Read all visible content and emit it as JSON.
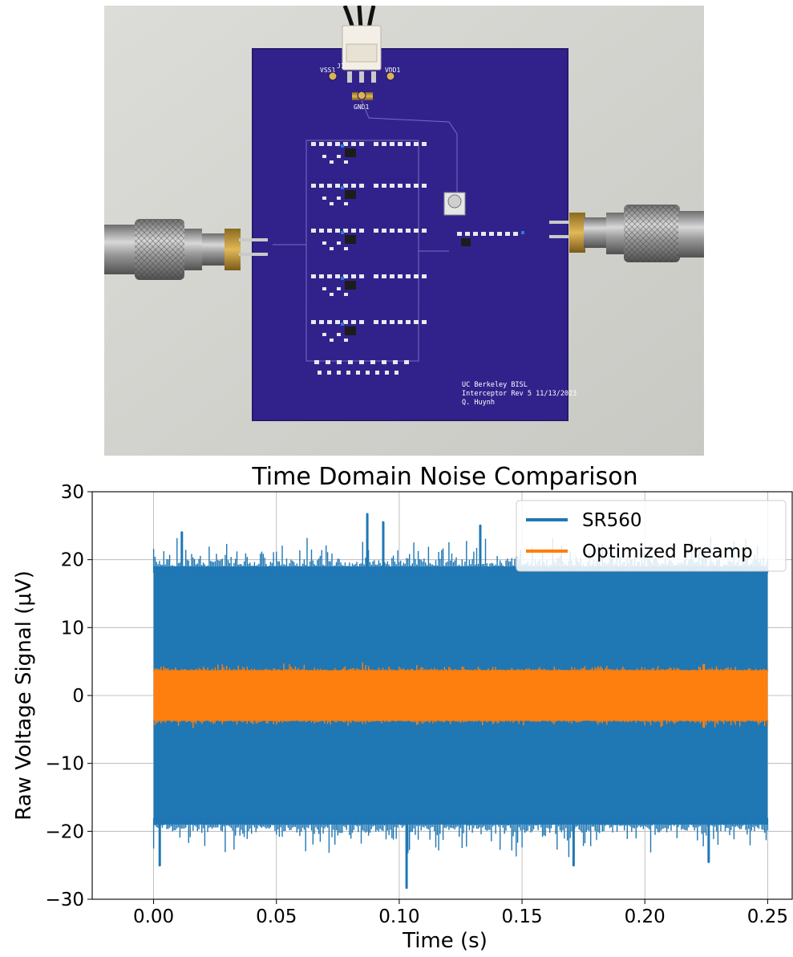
{
  "photo": {
    "connector_label": "J1",
    "pins": [
      "VSS1",
      "GND1",
      "VDD1"
    ],
    "silkscreen": [
      "UC Berkeley BISL",
      "Interceptor Rev 5 11/13/2023",
      "Q. Huynh"
    ]
  },
  "colors": {
    "sr560": "#1f77b4",
    "optimized": "#ff7f0e",
    "board": "#2f1f8a",
    "background": "#d6d6d2"
  },
  "chart_data": {
    "type": "line",
    "title": "Time Domain Noise Comparison",
    "xlabel": "Time (s)",
    "ylabel": "Raw Voltage Signal (μV)",
    "xlim": [
      -0.025,
      0.26
    ],
    "ylim": [
      -30,
      30
    ],
    "xticks": [
      "0.00",
      "0.05",
      "0.10",
      "0.15",
      "0.20",
      "0.25"
    ],
    "yticks": [
      "30",
      "20",
      "10",
      "0",
      "−10",
      "−20",
      "−30"
    ],
    "grid": true,
    "legend_position": "top-right",
    "series": [
      {
        "name": "SR560",
        "color": "#1f77b4",
        "x_range": [
          0,
          0.25
        ],
        "typical_band": [
          -19,
          19
        ],
        "peaks": [
          [
            0.0115,
            24
          ],
          [
            0.087,
            26.7
          ],
          [
            0.0935,
            25.5
          ],
          [
            0.133,
            25
          ],
          [
            0.103,
            -28.3
          ],
          [
            0.0025,
            -25
          ],
          [
            0.171,
            -25
          ],
          [
            0.226,
            -24.5
          ]
        ]
      },
      {
        "name": "Optimized Preamp",
        "color": "#ff7f0e",
        "x_range": [
          0,
          0.25
        ],
        "typical_band": [
          -3.7,
          3.7
        ],
        "peaks": [
          [
            0.224,
            4.5
          ],
          [
            0.224,
            -4.6
          ]
        ]
      }
    ]
  }
}
